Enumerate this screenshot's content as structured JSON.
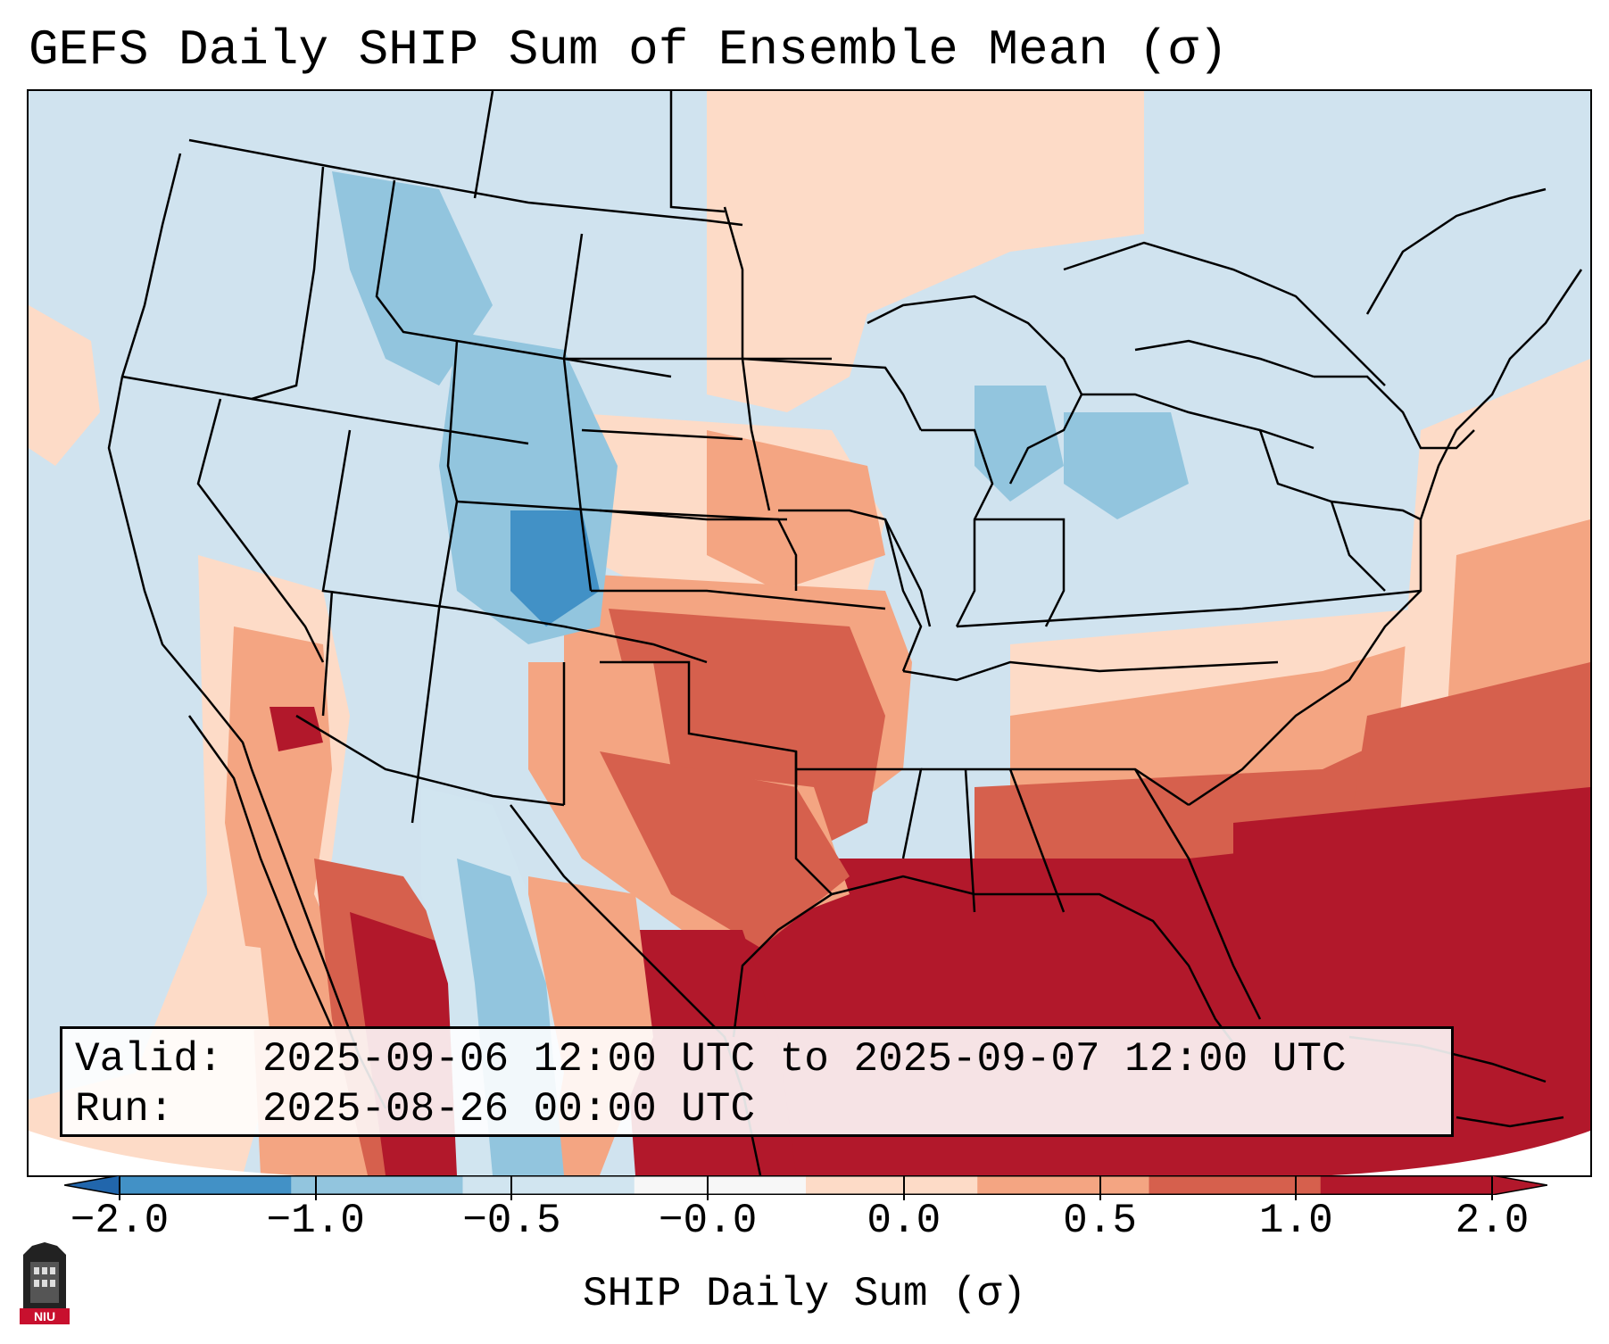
{
  "title": "GEFS Daily SHIP Sum of Ensemble Mean (σ)",
  "map": {
    "region": "Contiguous United States",
    "variable": "SHIP Daily Sum"
  },
  "info": {
    "valid_label": "Valid:",
    "valid_value": "2025-09-06 12:00 UTC to 2025-09-07 12:00 UTC",
    "run_label": "Run:",
    "run_value": "2025-08-26 00:00 UTC"
  },
  "colorbar": {
    "label": "SHIP Daily Sum (σ)",
    "ticks": [
      "−2.0",
      "−1.0",
      "−0.5",
      "−0.0",
      "0.0",
      "0.5",
      "1.0",
      "2.0"
    ],
    "colors": [
      "#4291c6",
      "#92c5de",
      "#d1e5f0",
      "#f7f7f7",
      "#fddbc7",
      "#f4a582",
      "#d6604d",
      "#b2182b"
    ],
    "under_color": "#2166ac",
    "over_color": "#b2182b"
  },
  "logo": {
    "name": "NIU"
  }
}
